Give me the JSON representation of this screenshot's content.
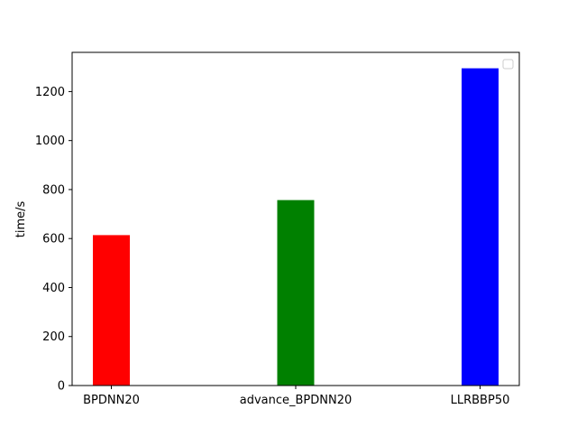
{
  "chart_data": {
    "type": "bar",
    "categories": [
      "BPDNN20",
      "advance_BPDNN20",
      "LLRBBP50"
    ],
    "values": [
      614,
      757,
      1295
    ],
    "colors": [
      "#ff0000",
      "#008000",
      "#0000ff"
    ],
    "title": "",
    "xlabel": "",
    "ylabel": "time/s",
    "ylim": [
      0,
      1360
    ],
    "yticks": [
      0,
      200,
      400,
      600,
      800,
      1000,
      1200
    ],
    "grid": false,
    "legend": {
      "placement": "top-right",
      "entries": []
    }
  }
}
